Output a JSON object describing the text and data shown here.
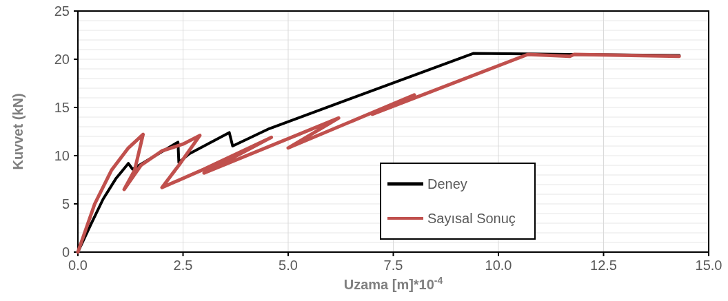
{
  "chart_data": {
    "type": "line",
    "xlabel": "Uzama [m]*10$^{-4}$",
    "ylabel": "Kuvvet (kN)",
    "xlim": [
      0,
      15
    ],
    "ylim": [
      0,
      25
    ],
    "xticks": [
      {
        "value": 0,
        "label": "0.0"
      },
      2.5,
      {
        "value": 5,
        "label": "5.0"
      },
      7.5,
      {
        "value": 10,
        "label": "10.0"
      },
      12.5,
      {
        "value": 15,
        "label": "15.0"
      }
    ],
    "yticks": [
      0,
      {
        "value": 1,
        "label": null
      },
      {
        "value": 2,
        "label": null
      },
      {
        "value": 3,
        "label": null
      },
      {
        "value": 4,
        "label": null
      },
      5,
      {
        "value": 6,
        "label": null
      },
      {
        "value": 7,
        "label": null
      },
      {
        "value": 8,
        "label": null
      },
      {
        "value": 9,
        "label": null
      },
      10,
      {
        "value": 11,
        "label": null
      },
      {
        "value": 12,
        "label": null
      },
      {
        "value": 13,
        "label": null
      },
      {
        "value": 14,
        "label": null
      },
      15,
      {
        "value": 16,
        "label": null
      },
      {
        "value": 17,
        "label": null
      },
      {
        "value": 18,
        "label": null
      },
      {
        "value": 19,
        "label": null
      },
      20,
      {
        "value": 21,
        "label": null
      },
      {
        "value": 22,
        "label": null
      },
      {
        "value": 23,
        "label": null
      },
      {
        "value": 24,
        "label": null
      },
      25
    ],
    "grid": true,
    "legend": "bottom right",
    "marker": "none",
    "line_style": "solid",
    "series": [
      {
        "name": "Deney",
        "color": "#000000",
        "x": [
          0,
          0.3,
          0.6,
          0.9,
          1.2,
          1.3,
          2.38,
          2.4,
          2.65,
          3.6,
          3.68,
          4.55,
          9.4,
          11.7,
          14.3
        ],
        "values": [
          0,
          2.8,
          5.5,
          7.6,
          9.2,
          8.6,
          11.4,
          9.3,
          10.2,
          12.4,
          11.0,
          12.8,
          20.6,
          20.5,
          20.4
        ]
      },
      {
        "name": "Sayısal Sonuç",
        "color": "#c0504d",
        "x": [
          0,
          0.4,
          0.8,
          1.2,
          1.55,
          1.35,
          1.1,
          1.5,
          2.0,
          2.5,
          2.9,
          2.4,
          2.0,
          3.0,
          4.6,
          3.0,
          6.2,
          5.0,
          8.0,
          7.0,
          10.7,
          11.7,
          11.8,
          14.3
        ],
        "values": [
          0,
          5,
          8.5,
          10.8,
          12.2,
          8.5,
          6.5,
          9,
          10.5,
          11.2,
          12.1,
          9,
          6.7,
          8.6,
          11.9,
          8.2,
          13.9,
          10.8,
          16.3,
          14.3,
          20.5,
          20.3,
          20.5,
          20.3
        ]
      }
    ]
  }
}
